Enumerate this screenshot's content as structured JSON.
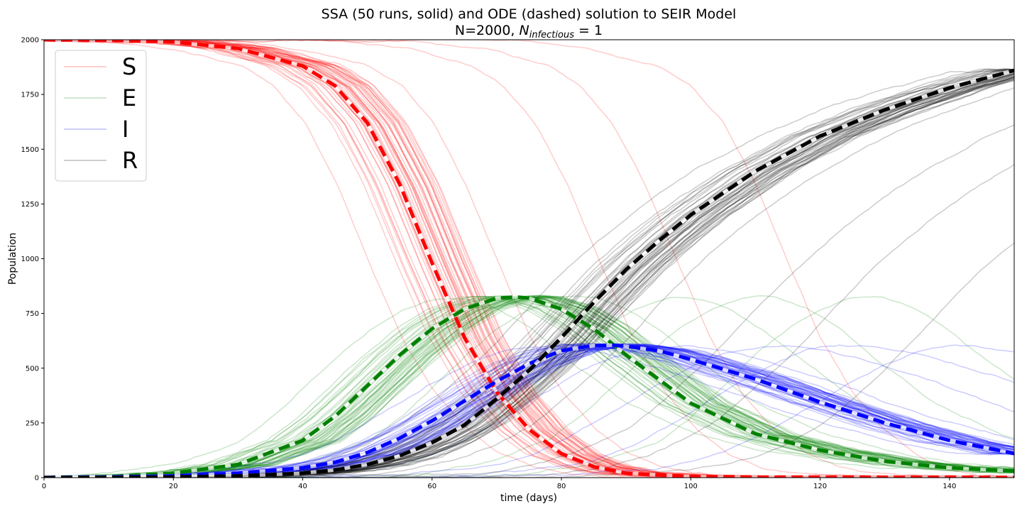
{
  "chart_data": {
    "type": "line",
    "title": "SSA (50 runs, solid) and ODE (dashed) solution to SEIR Model",
    "subtitle": {
      "prefix": "N=2000, ",
      "symbol": "N",
      "subscript": "infectious",
      "suffix": " = 1"
    },
    "xlabel": "time (days)",
    "ylabel": "Population",
    "xlim": [
      0,
      150
    ],
    "ylim": [
      0,
      2000
    ],
    "x_ticks": [
      0,
      20,
      40,
      60,
      80,
      100,
      120,
      140
    ],
    "y_ticks": [
      0,
      250,
      500,
      750,
      1000,
      1250,
      1500,
      1750,
      2000
    ],
    "grid": false,
    "legend_position": "top-left",
    "ssa_runs": 50,
    "series": [
      {
        "name": "S",
        "color": "#ff0000",
        "ode_points": [
          [
            0,
            2000
          ],
          [
            10,
            1998
          ],
          [
            20,
            1990
          ],
          [
            30,
            1960
          ],
          [
            40,
            1880
          ],
          [
            45,
            1790
          ],
          [
            50,
            1620
          ],
          [
            55,
            1340
          ],
          [
            60,
            980
          ],
          [
            65,
            640
          ],
          [
            70,
            390
          ],
          [
            75,
            220
          ],
          [
            80,
            110
          ],
          [
            85,
            50
          ],
          [
            90,
            20
          ],
          [
            100,
            5
          ],
          [
            110,
            2
          ],
          [
            150,
            1
          ]
        ]
      },
      {
        "name": "E",
        "color": "#008000",
        "ode_points": [
          [
            0,
            1
          ],
          [
            10,
            5
          ],
          [
            20,
            20
          ],
          [
            30,
            60
          ],
          [
            40,
            170
          ],
          [
            45,
            280
          ],
          [
            50,
            420
          ],
          [
            55,
            560
          ],
          [
            60,
            680
          ],
          [
            65,
            770
          ],
          [
            70,
            820
          ],
          [
            73,
            825
          ],
          [
            75,
            820
          ],
          [
            80,
            770
          ],
          [
            85,
            680
          ],
          [
            90,
            560
          ],
          [
            95,
            450
          ],
          [
            100,
            340
          ],
          [
            110,
            200
          ],
          [
            120,
            125
          ],
          [
            130,
            75
          ],
          [
            140,
            45
          ],
          [
            150,
            30
          ]
        ]
      },
      {
        "name": "I",
        "color": "#0000ff",
        "ode_points": [
          [
            0,
            1
          ],
          [
            10,
            3
          ],
          [
            20,
            8
          ],
          [
            30,
            20
          ],
          [
            40,
            45
          ],
          [
            45,
            70
          ],
          [
            50,
            115
          ],
          [
            55,
            180
          ],
          [
            60,
            260
          ],
          [
            65,
            350
          ],
          [
            70,
            440
          ],
          [
            75,
            520
          ],
          [
            80,
            580
          ],
          [
            85,
            603
          ],
          [
            88,
            605
          ],
          [
            90,
            600
          ],
          [
            95,
            580
          ],
          [
            100,
            540
          ],
          [
            105,
            495
          ],
          [
            110,
            450
          ],
          [
            120,
            345
          ],
          [
            130,
            250
          ],
          [
            140,
            170
          ],
          [
            150,
            110
          ]
        ]
      },
      {
        "name": "R",
        "color": "#000000",
        "ode_points": [
          [
            0,
            0
          ],
          [
            10,
            1
          ],
          [
            20,
            3
          ],
          [
            30,
            8
          ],
          [
            40,
            20
          ],
          [
            45,
            35
          ],
          [
            50,
            60
          ],
          [
            55,
            100
          ],
          [
            60,
            160
          ],
          [
            65,
            240
          ],
          [
            70,
            360
          ],
          [
            75,
            490
          ],
          [
            80,
            640
          ],
          [
            85,
            800
          ],
          [
            90,
            950
          ],
          [
            95,
            1080
          ],
          [
            100,
            1200
          ],
          [
            110,
            1400
          ],
          [
            120,
            1560
          ],
          [
            130,
            1680
          ],
          [
            140,
            1780
          ],
          [
            150,
            1860
          ]
        ]
      }
    ]
  }
}
